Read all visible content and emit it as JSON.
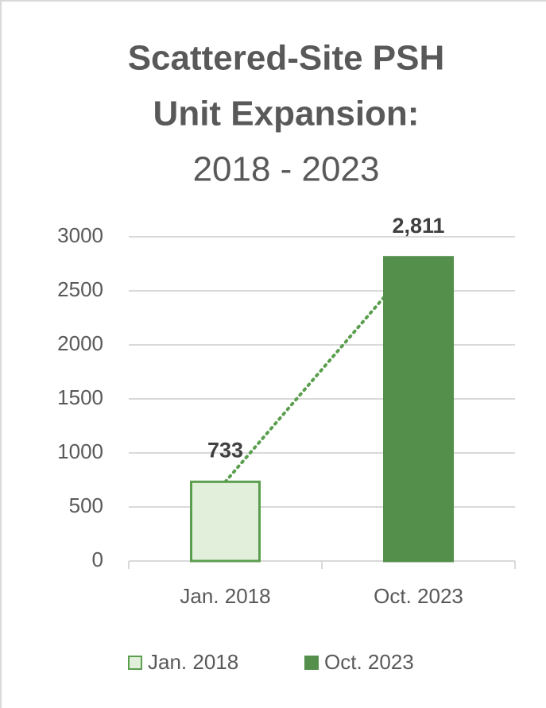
{
  "chart_data": {
    "type": "bar",
    "title": [
      "Scattered-Site PSH",
      "Unit Expansion:",
      "2018 - 2023"
    ],
    "categories": [
      "Jan. 2018",
      "Oct. 2023"
    ],
    "values": [
      733,
      2811
    ],
    "value_labels": [
      "733",
      "2,811"
    ],
    "colors": [
      "#e2efda",
      "#548f4c"
    ],
    "edge_colors": [
      "#5a9e4e",
      "#548f4c"
    ],
    "trendline": true,
    "ylim": [
      0,
      3000
    ],
    "yticks": [
      0,
      500,
      1000,
      1500,
      2000,
      2500,
      3000
    ],
    "grid": true,
    "legend": "bottom"
  }
}
